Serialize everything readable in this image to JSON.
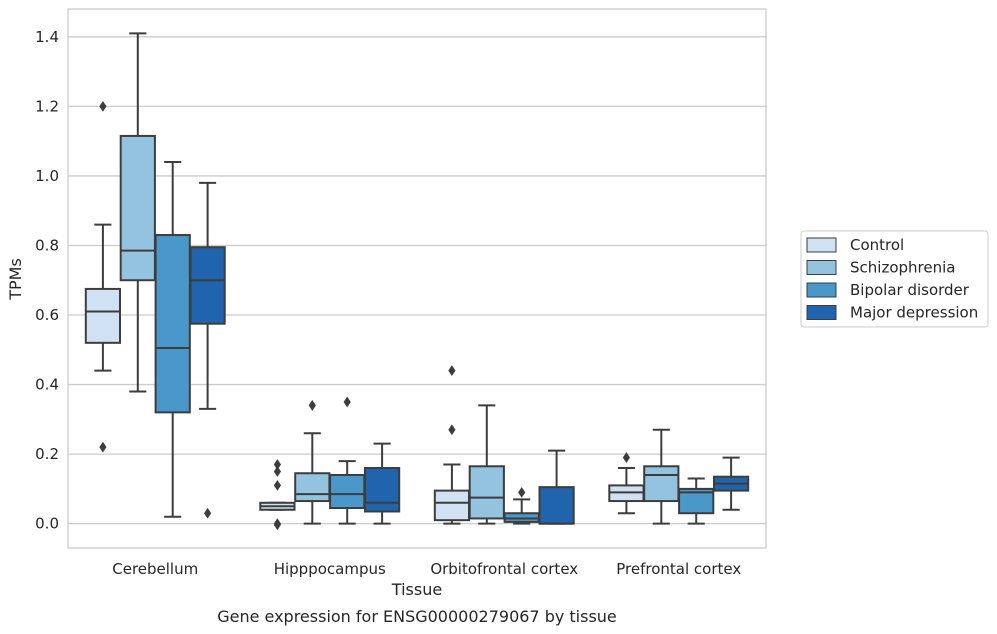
{
  "caption": "Gene expression for ENSG00000279067 by tissue",
  "chart_data": {
    "type": "box",
    "xlabel": "Tissue",
    "ylabel": "TPMs",
    "ylim": [
      -0.07,
      1.48
    ],
    "yticks": [
      0.0,
      0.2,
      0.4,
      0.6,
      0.8,
      1.0,
      1.2,
      1.4
    ],
    "ytick_labels": [
      "0.0",
      "0.2",
      "0.4",
      "0.6",
      "0.8",
      "1.0",
      "1.2",
      "1.4"
    ],
    "grid": "horizontal",
    "legend_position": "right",
    "categories": [
      "Cerebellum",
      "Hipppocampus",
      "Orbitofrontal cortex",
      "Prefrontal cortex"
    ],
    "series": [
      {
        "name": "Control",
        "color": "#cfe1f2",
        "boxes": [
          {
            "q1": 0.52,
            "median": 0.61,
            "q3": 0.675,
            "whislo": 0.44,
            "whishi": 0.86,
            "fliers": [
              1.2,
              0.22
            ]
          },
          {
            "q1": 0.04,
            "median": 0.05,
            "q3": 0.06,
            "whislo": 0.04,
            "whishi": 0.06,
            "fliers": [
              0.17,
              0.15,
              0.11,
              0.0,
              -0.003
            ]
          },
          {
            "q1": 0.01,
            "median": 0.06,
            "q3": 0.095,
            "whislo": 0.0,
            "whishi": 0.17,
            "fliers": [
              0.44,
              0.27
            ]
          },
          {
            "q1": 0.065,
            "median": 0.09,
            "q3": 0.11,
            "whislo": 0.03,
            "whishi": 0.16,
            "fliers": [
              0.19
            ]
          }
        ]
      },
      {
        "name": "Schizophrenia",
        "color": "#93c3df",
        "boxes": [
          {
            "q1": 0.7,
            "median": 0.785,
            "q3": 1.115,
            "whislo": 0.38,
            "whishi": 1.41,
            "fliers": []
          },
          {
            "q1": 0.065,
            "median": 0.085,
            "q3": 0.145,
            "whislo": 0.0,
            "whishi": 0.26,
            "fliers": [
              0.34
            ]
          },
          {
            "q1": 0.015,
            "median": 0.075,
            "q3": 0.165,
            "whislo": 0.0,
            "whishi": 0.34,
            "fliers": []
          },
          {
            "q1": 0.065,
            "median": 0.14,
            "q3": 0.165,
            "whislo": 0.0,
            "whishi": 0.27,
            "fliers": []
          }
        ]
      },
      {
        "name": "Bipolar disorder",
        "color": "#4a98c9",
        "boxes": [
          {
            "q1": 0.32,
            "median": 0.505,
            "q3": 0.83,
            "whislo": 0.02,
            "whishi": 1.04,
            "fliers": []
          },
          {
            "q1": 0.045,
            "median": 0.085,
            "q3": 0.14,
            "whislo": 0.0,
            "whishi": 0.18,
            "fliers": [
              0.35
            ]
          },
          {
            "q1": 0.005,
            "median": 0.015,
            "q3": 0.03,
            "whislo": 0.0,
            "whishi": 0.07,
            "fliers": [
              0.09
            ]
          },
          {
            "q1": 0.03,
            "median": 0.09,
            "q3": 0.1,
            "whislo": 0.0,
            "whishi": 0.13,
            "fliers": []
          }
        ]
      },
      {
        "name": "Major depression",
        "color": "#2064ae",
        "boxes": [
          {
            "q1": 0.575,
            "median": 0.7,
            "q3": 0.795,
            "whislo": 0.33,
            "whishi": 0.98,
            "fliers": [
              0.03
            ]
          },
          {
            "q1": 0.035,
            "median": 0.06,
            "q3": 0.16,
            "whislo": 0.0,
            "whishi": 0.23,
            "fliers": []
          },
          {
            "q1": 0.0,
            "median": 0.0,
            "q3": 0.105,
            "whislo": 0.0,
            "whishi": 0.21,
            "fliers": []
          },
          {
            "q1": 0.095,
            "median": 0.115,
            "q3": 0.135,
            "whislo": 0.04,
            "whishi": 0.19,
            "fliers": []
          }
        ]
      }
    ]
  }
}
